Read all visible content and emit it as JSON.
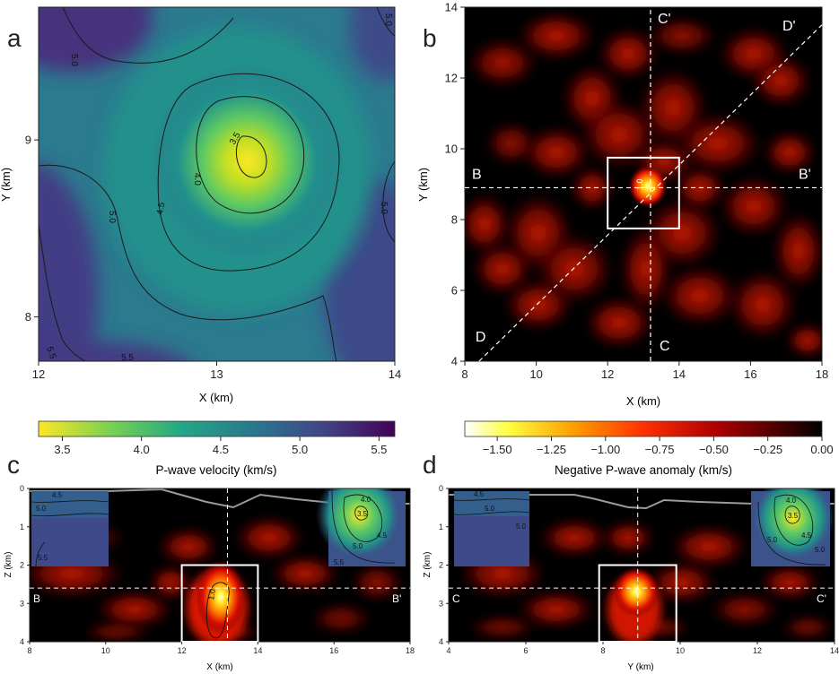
{
  "chart_data": [
    {
      "panel": "a",
      "type": "heatmap",
      "title": "",
      "xlabel": "X (km)",
      "ylabel": "Y (km)",
      "xlim": [
        12,
        14
      ],
      "ylim": [
        7.75,
        9.75
      ],
      "xticks": [
        "12",
        "13",
        "14"
      ],
      "yticks": [
        "8",
        "9"
      ],
      "colormap": "viridis",
      "reverse_colormap": true,
      "peak": {
        "x": 13.2,
        "y": 8.9,
        "value": 3.4
      },
      "contour_labels": [
        "5.0",
        "5.0",
        "3.5",
        "4.0",
        "4.5",
        "5.0",
        "5.0",
        "5.5",
        "5.5"
      ],
      "colorbar": {
        "label": "P-wave velocity (km/s)",
        "range": [
          3.35,
          5.6
        ],
        "ticks": [
          "3.5",
          "4.0",
          "4.5",
          "5.0",
          "5.5"
        ],
        "tick_values": [
          3.5,
          4.0,
          4.5,
          5.0,
          5.5
        ]
      }
    },
    {
      "panel": "b",
      "type": "heatmap",
      "title": "",
      "xlabel": "X (km)",
      "ylabel": "Y (km)",
      "xlim": [
        8,
        18
      ],
      "ylim": [
        4,
        14
      ],
      "xticks": [
        "8",
        "10",
        "12",
        "14",
        "16",
        "18"
      ],
      "yticks": [
        "4",
        "6",
        "8",
        "10",
        "12",
        "14"
      ],
      "colormap": "hot",
      "peak": {
        "x": 13.2,
        "y": 8.9,
        "value": -1.6
      },
      "box": {
        "x0": 12,
        "x1": 14,
        "y0": 7.75,
        "y1": 9.75
      },
      "profiles": [
        {
          "start": "B",
          "end": "B'",
          "from": [
            8,
            8.9
          ],
          "to": [
            18,
            8.9
          ]
        },
        {
          "start": "C",
          "end": "C'",
          "from": [
            13.2,
            4
          ],
          "to": [
            13.2,
            14
          ]
        },
        {
          "start": "D",
          "end": "D'",
          "from": [
            8.4,
            4
          ],
          "to": [
            18,
            13.5
          ]
        }
      ],
      "colorbar": {
        "label": "Negative P-wave anomaly (km/s)",
        "range": [
          -1.65,
          0
        ],
        "ticks": [
          "−1.50",
          "−1.25",
          "−1.00",
          "−0.75",
          "−0.50",
          "−0.25",
          "0.00"
        ],
        "tick_values": [
          -1.5,
          -1.25,
          -1.0,
          -0.75,
          -0.5,
          -0.25,
          0.0
        ]
      }
    },
    {
      "panel": "c",
      "type": "heatmap",
      "title": "",
      "xlabel": "X (km)",
      "ylabel": "Z (km)",
      "xlim": [
        8,
        18
      ],
      "ylim": [
        4,
        0
      ],
      "xticks": [
        "8",
        "10",
        "12",
        "14",
        "16",
        "18"
      ],
      "yticks": [
        "0",
        "1",
        "2",
        "3",
        "4"
      ],
      "colormap": "hot",
      "peak": {
        "x": 13.2,
        "z": 2.6
      },
      "box": {
        "x0": 12,
        "x1": 14,
        "z0": 2,
        "z1": 4
      },
      "end_labels": [
        "B",
        "B'"
      ],
      "profile_depth": 2.6,
      "marker_x": 13.2,
      "inner_contour_label": "1.0",
      "inset_labels": [
        [
          "4.5",
          "5.0",
          "5.5"
        ],
        [
          "4.0",
          "3.5",
          "4.5",
          "5.0",
          "5.5"
        ]
      ]
    },
    {
      "panel": "d",
      "type": "heatmap",
      "title": "",
      "xlabel": "Y (km)",
      "ylabel": "Z (km)",
      "xlim": [
        4,
        14
      ],
      "ylim": [
        4,
        0
      ],
      "xticks": [
        "4",
        "6",
        "8",
        "10",
        "12",
        "14"
      ],
      "yticks": [
        "0",
        "1",
        "2",
        "3",
        "4"
      ],
      "colormap": "hot",
      "peak": {
        "y": 8.9,
        "z": 2.6
      },
      "box": {
        "x0": 7.9,
        "x1": 9.9,
        "z0": 2,
        "z1": 4
      },
      "end_labels": [
        "C",
        "C'"
      ],
      "profile_depth": 2.6,
      "marker_x": 8.9,
      "inset_labels": [
        [
          "4.5",
          "5.0",
          "5.0"
        ],
        [
          "4.0",
          "3.5",
          "5.0",
          "4.5",
          "5.0"
        ]
      ]
    }
  ],
  "panel_letters": [
    "a",
    "b",
    "c",
    "d"
  ]
}
